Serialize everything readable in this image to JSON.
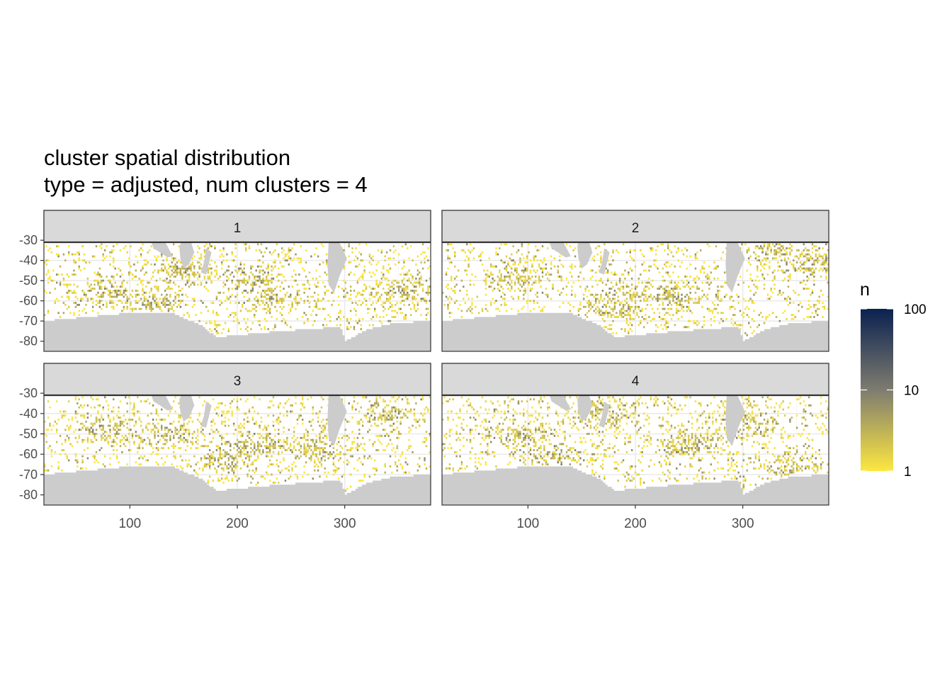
{
  "chart_data": {
    "type": "heatmap",
    "title": "cluster spatial distribution",
    "subtitle": "type = adjusted, num clusters = 4",
    "xlabel": "",
    "ylabel": "",
    "xlim": [
      20,
      380
    ],
    "ylim": [
      -85,
      -31
    ],
    "x_ticks": [
      100,
      200,
      300
    ],
    "y_ticks": [
      -30,
      -40,
      -50,
      -60,
      -70,
      -80
    ],
    "grid": true,
    "facets": [
      {
        "label": "1",
        "hotspots": [
          [
            210,
            -48
          ],
          [
            150,
            -45
          ],
          [
            230,
            -58
          ],
          [
            80,
            -55
          ],
          [
            120,
            -60
          ],
          [
            350,
            -55
          ]
        ]
      },
      {
        "label": "2",
        "hotspots": [
          [
            240,
            -58
          ],
          [
            90,
            -48
          ],
          [
            200,
            -55
          ],
          [
            360,
            -40
          ],
          [
            330,
            -35
          ],
          [
            180,
            -62
          ]
        ]
      },
      {
        "label": "3",
        "hotspots": [
          [
            220,
            -55
          ],
          [
            130,
            -50
          ],
          [
            340,
            -40
          ],
          [
            80,
            -48
          ],
          [
            190,
            -62
          ],
          [
            270,
            -57
          ]
        ]
      },
      {
        "label": "4",
        "hotspots": [
          [
            250,
            -55
          ],
          [
            170,
            -40
          ],
          [
            120,
            -60
          ],
          [
            350,
            -65
          ],
          [
            90,
            -50
          ],
          [
            300,
            -45
          ]
        ]
      }
    ],
    "legend": {
      "title": "n",
      "scale": "log10",
      "breaks": [
        "100",
        "10",
        "1"
      ],
      "range": [
        1,
        100
      ],
      "colors": [
        "#FDE740",
        "#7E7C70",
        "#0A2150"
      ],
      "placement": "right"
    },
    "land_color": "#CCCCCC",
    "panel_border": "#333333",
    "strip_fill": "#D9D9D9"
  }
}
